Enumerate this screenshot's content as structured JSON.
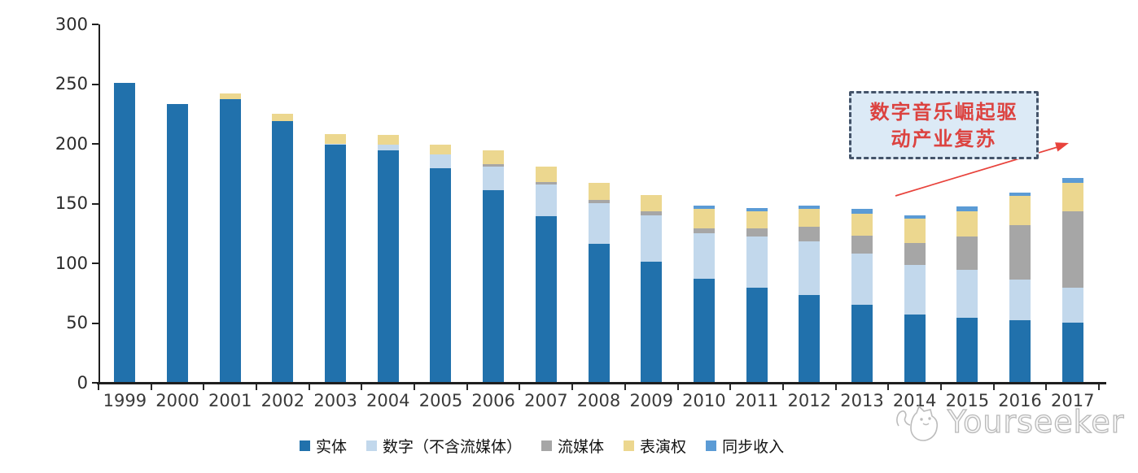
{
  "watermark": {
    "text": "Yourseeker"
  },
  "annotation": {
    "line1": "数字音乐崛起驱",
    "line2": "动产业复苏",
    "text_color": "#dc4340",
    "box_fill": "#dceaf6",
    "box_border": "#44546a",
    "arrow_color": "#e8433c"
  },
  "chart_data": {
    "type": "bar",
    "stacked": true,
    "title": "",
    "xlabel": "",
    "ylabel": "",
    "grid": false,
    "legend_position": "bottom",
    "ylim": [
      0,
      300
    ],
    "yticks": [
      0,
      50,
      100,
      150,
      200,
      250,
      300
    ],
    "categories": [
      "1999",
      "2000",
      "2001",
      "2002",
      "2003",
      "2004",
      "2005",
      "2006",
      "2007",
      "2008",
      "2009",
      "2010",
      "2011",
      "2012",
      "2013",
      "2014",
      "2015",
      "2016",
      "2017"
    ],
    "series": [
      {
        "name": "实体",
        "color": "#2171ac",
        "values": [
          252,
          234,
          238,
          220,
          200,
          195,
          180,
          162,
          140,
          117,
          102,
          88,
          80,
          74,
          66,
          58,
          55,
          53,
          51
        ]
      },
      {
        "name": "数字（不含流媒体）",
        "color": "#c2d8ec",
        "values": [
          0,
          0,
          0,
          0,
          1,
          5,
          12,
          20,
          27,
          34,
          39,
          38,
          43,
          45,
          43,
          41,
          40,
          34,
          29
        ]
      },
      {
        "name": "流媒体",
        "color": "#a6a6a6",
        "values": [
          0,
          0,
          0,
          0,
          0,
          0,
          0,
          2,
          2,
          3,
          3,
          4,
          7,
          12,
          15,
          19,
          28,
          46,
          64
        ]
      },
      {
        "name": "表演权",
        "color": "#ecd78f",
        "values": [
          0,
          0,
          5,
          6,
          8,
          8,
          8,
          11,
          13,
          14,
          14,
          16,
          14,
          15,
          18,
          20,
          21,
          24,
          24
        ]
      },
      {
        "name": "同步收入",
        "color": "#5b9bd5",
        "values": [
          0,
          0,
          0,
          0,
          0,
          0,
          0,
          0,
          0,
          0,
          0,
          3,
          3,
          3,
          4,
          3,
          4,
          3,
          4
        ]
      }
    ]
  }
}
